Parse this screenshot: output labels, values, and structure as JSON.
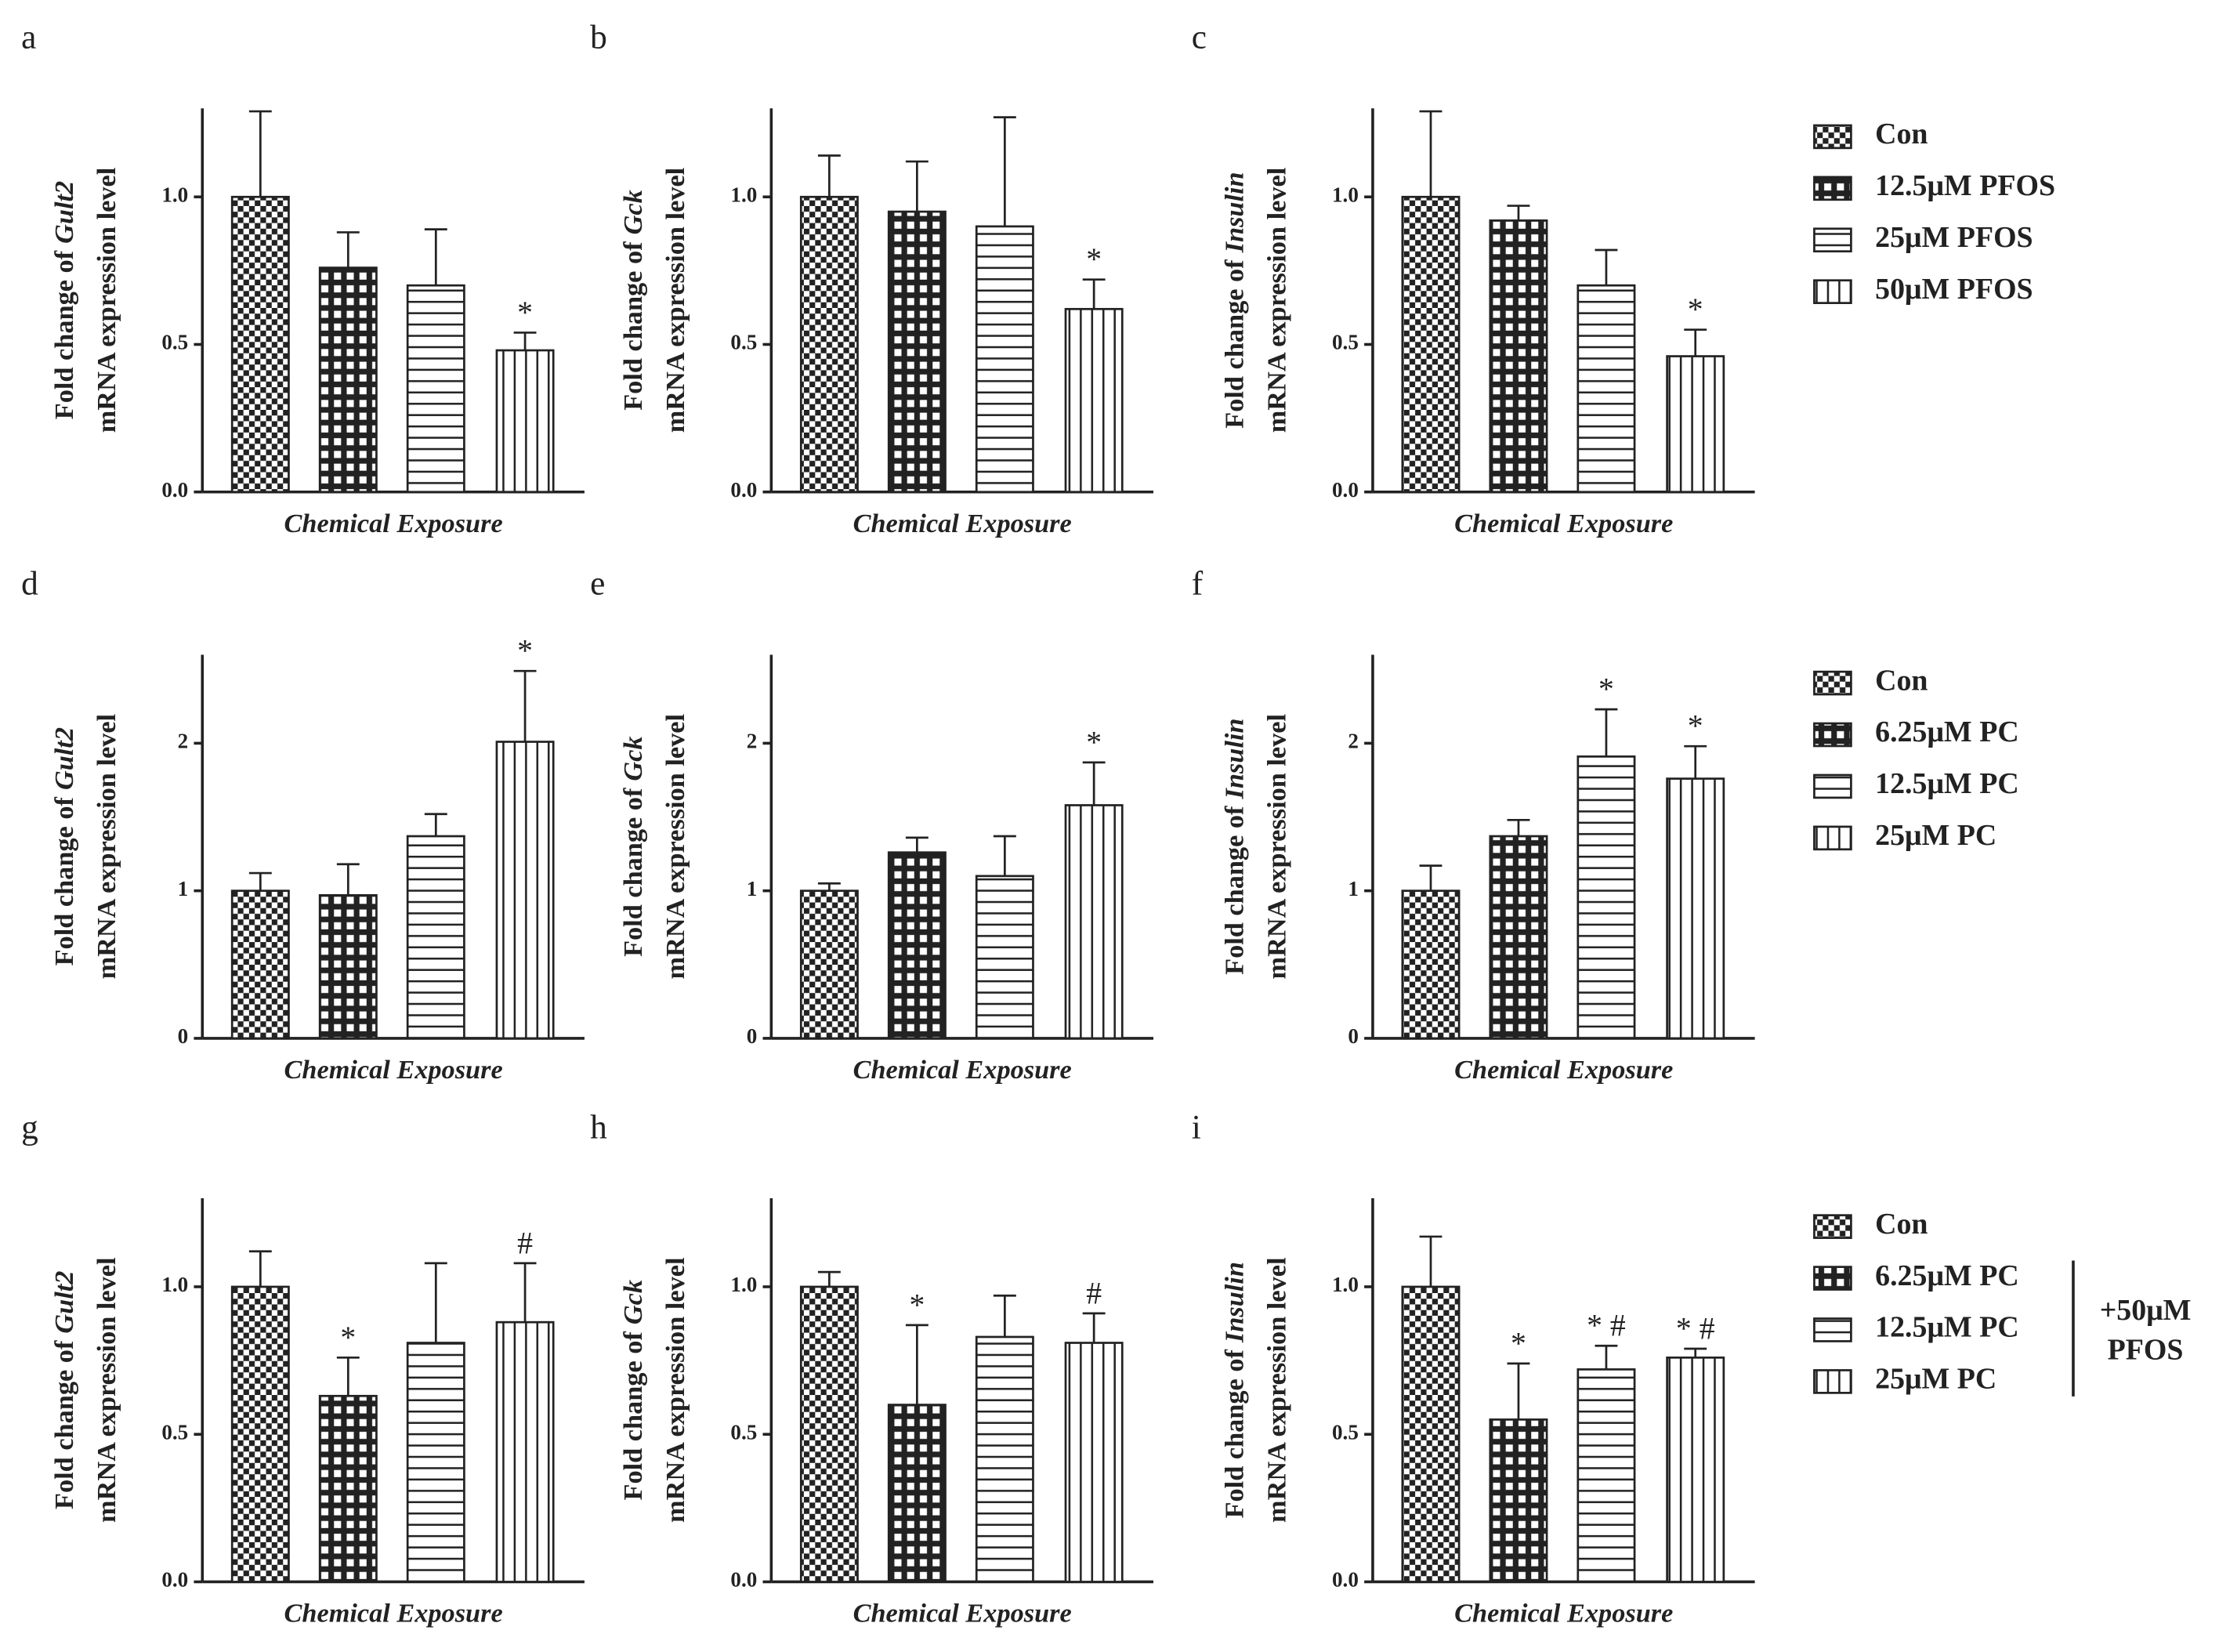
{
  "chart_data": [
    {
      "type": "bar",
      "panel": "a",
      "ylabel": {
        "prefix": "Fold change of",
        "gene": "Gult2",
        "line2": "mRNA expression level"
      },
      "xlabel": "Chemical Exposure",
      "categories": [
        "Con",
        "12.5μM PFOS",
        "25μM PFOS",
        "50μM PFOS"
      ],
      "patterns": [
        "checker",
        "grid",
        "hstripe",
        "vstripe"
      ],
      "color": "#222222",
      "values": [
        1.0,
        0.76,
        0.7,
        0.48
      ],
      "errors": [
        0.29,
        0.12,
        0.19,
        0.06
      ],
      "annotations": [
        null,
        null,
        null,
        "*"
      ],
      "ylim": [
        0,
        1.3
      ],
      "yticks": [
        {
          "value": 0,
          "label": "0.0"
        },
        {
          "value": 0.5,
          "label": "0.5"
        },
        {
          "value": 1,
          "label": "1.0"
        }
      ]
    },
    {
      "type": "bar",
      "panel": "b",
      "ylabel": {
        "prefix": "Fold change of",
        "gene": "Gck",
        "line2": "mRNA expression level"
      },
      "xlabel": "Chemical Exposure",
      "color": "#222222",
      "values": [
        1.0,
        0.95,
        0.9,
        0.62
      ],
      "errors": [
        0.14,
        0.17,
        0.37,
        0.1
      ],
      "annotations": [
        null,
        null,
        null,
        "*"
      ],
      "ylim": [
        0,
        1.3
      ],
      "yticks": [
        {
          "value": 0,
          "label": "0.0"
        },
        {
          "value": 0.5,
          "label": "0.5"
        },
        {
          "value": 1,
          "label": "1.0"
        }
      ]
    },
    {
      "type": "bar",
      "panel": "c",
      "ylabel": {
        "prefix": "Fold change of",
        "gene": "Insulin",
        "line2": "mRNA expression level"
      },
      "xlabel": "Chemical Exposure",
      "color": "#222222",
      "values": [
        1.0,
        0.92,
        0.7,
        0.46
      ],
      "errors": [
        0.29,
        0.05,
        0.12,
        0.09
      ],
      "annotations": [
        null,
        null,
        null,
        "*"
      ],
      "ylim": [
        0,
        1.3
      ],
      "yticks": [
        {
          "value": 0,
          "label": "0.0"
        },
        {
          "value": 0.5,
          "label": "0.5"
        },
        {
          "value": 1,
          "label": "1.0"
        }
      ]
    },
    {
      "type": "bar",
      "panel": "d",
      "ylabel": {
        "prefix": "Fold change of",
        "gene": "Gult2",
        "line2": "mRNA expression level"
      },
      "xlabel": "Chemical Exposure",
      "categories": [
        "Con",
        "6.25μM PC",
        "12.5μM PC",
        "25μM PC"
      ],
      "patterns": [
        "checker",
        "grid",
        "hstripe",
        "vstripe"
      ],
      "color": "#222222",
      "values": [
        1.0,
        0.97,
        1.37,
        2.01
      ],
      "errors": [
        0.12,
        0.21,
        0.15,
        0.48
      ],
      "annotations": [
        null,
        null,
        null,
        "*"
      ],
      "ylim": [
        0,
        2.6
      ],
      "yticks": [
        0,
        1,
        2
      ]
    },
    {
      "type": "bar",
      "panel": "e",
      "ylabel": {
        "prefix": "Fold change of",
        "gene": "Gck",
        "line2": "mRNA expression level"
      },
      "xlabel": "Chemical Exposure",
      "color": "#222222",
      "values": [
        1.0,
        1.26,
        1.1,
        1.58
      ],
      "errors": [
        0.05,
        0.1,
        0.27,
        0.29
      ],
      "annotations": [
        null,
        null,
        null,
        "*"
      ],
      "ylim": [
        0,
        2.6
      ],
      "yticks": [
        0,
        1,
        2
      ]
    },
    {
      "type": "bar",
      "panel": "f",
      "ylabel": {
        "prefix": "Fold change of",
        "gene": "Insulin",
        "line2": "mRNA expression level"
      },
      "xlabel": "Chemical Exposure",
      "color": "#222222",
      "values": [
        1.0,
        1.37,
        1.91,
        1.76
      ],
      "errors": [
        0.17,
        0.11,
        0.32,
        0.22
      ],
      "annotations": [
        null,
        null,
        "*",
        "*"
      ],
      "ylim": [
        0,
        2.6
      ],
      "yticks": [
        0,
        1,
        2
      ]
    },
    {
      "type": "bar",
      "panel": "g",
      "ylabel": {
        "prefix": "Fold change of",
        "gene": "Gult2",
        "line2": "mRNA expression level"
      },
      "xlabel": "Chemical Exposure",
      "categories": [
        "Con",
        "6.25μM PC",
        "12.5μM PC",
        "25μM PC"
      ],
      "patterns": [
        "checker",
        "grid",
        "hstripe",
        "vstripe"
      ],
      "legend_note": [
        "+50μM",
        "PFOS"
      ],
      "color": "#222222",
      "values": [
        1.0,
        0.63,
        0.81,
        0.88
      ],
      "errors": [
        0.12,
        0.13,
        0.27,
        0.2
      ],
      "annotations": [
        null,
        "*",
        null,
        "#"
      ],
      "ylim": [
        0,
        1.3
      ],
      "yticks": [
        {
          "value": 0,
          "label": "0.0"
        },
        {
          "value": 0.5,
          "label": "0.5"
        },
        {
          "value": 1,
          "label": "1.0"
        }
      ]
    },
    {
      "type": "bar",
      "panel": "h",
      "ylabel": {
        "prefix": "Fold change of",
        "gene": "Gck",
        "line2": "mRNA expression level"
      },
      "xlabel": "Chemical Exposure",
      "color": "#222222",
      "values": [
        1.0,
        0.6,
        0.83,
        0.81
      ],
      "errors": [
        0.05,
        0.27,
        0.14,
        0.1
      ],
      "annotations": [
        null,
        "*",
        null,
        "#"
      ],
      "ylim": [
        0,
        1.3
      ],
      "yticks": [
        {
          "value": 0,
          "label": "0.0"
        },
        {
          "value": 0.5,
          "label": "0.5"
        },
        {
          "value": 1,
          "label": "1.0"
        }
      ]
    },
    {
      "type": "bar",
      "panel": "i",
      "ylabel": {
        "prefix": "Fold change of",
        "gene": "Insulin",
        "line2": "mRNA expression level"
      },
      "xlabel": "Chemical Exposure",
      "color": "#222222",
      "values": [
        1.0,
        0.55,
        0.72,
        0.76
      ],
      "errors": [
        0.17,
        0.19,
        0.08,
        0.03
      ],
      "annotations": [
        null,
        "*",
        "* #",
        "* #"
      ],
      "ylim": [
        0,
        1.3
      ],
      "yticks": [
        {
          "value": 0,
          "label": "0.0"
        },
        {
          "value": 0.5,
          "label": "0.5"
        },
        {
          "value": 1,
          "label": "1.0"
        }
      ]
    }
  ]
}
